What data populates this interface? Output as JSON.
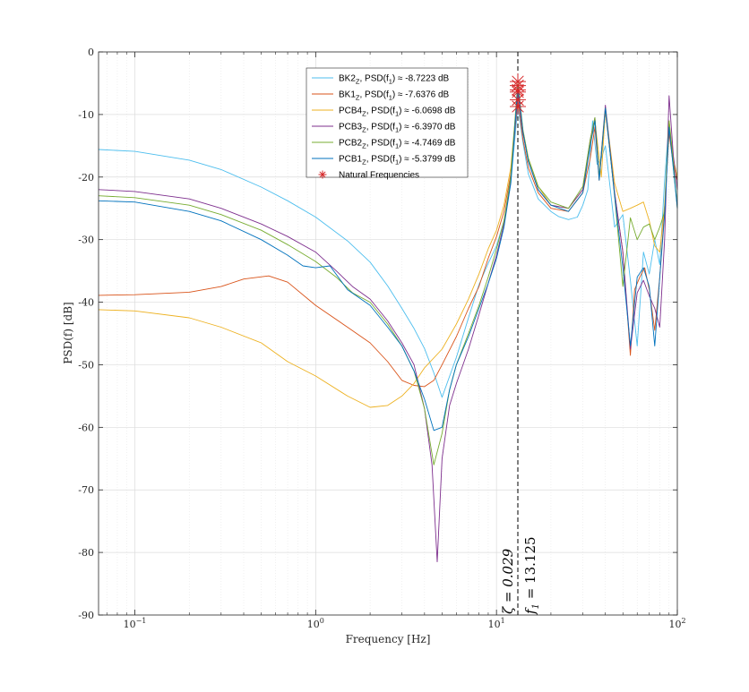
{
  "chart_data": {
    "type": "line",
    "xlabel": "Frequency [Hz]",
    "ylabel": "PSD(f) [dB]",
    "x_scale": "log",
    "xlim": [
      0.063,
      100
    ],
    "ylim": [
      -90,
      0
    ],
    "grid": true,
    "legend_position": "top-center",
    "x_ticks": [
      {
        "value": 0.1,
        "base": "10",
        "exp": "−1"
      },
      {
        "value": 1,
        "base": "10",
        "exp": "0"
      },
      {
        "value": 10,
        "base": "10",
        "exp": "1"
      },
      {
        "value": 100,
        "base": "10",
        "exp": "2"
      }
    ],
    "y_ticks": [
      0,
      -10,
      -20,
      -30,
      -40,
      -50,
      -60,
      -70,
      -80,
      -90
    ],
    "series": [
      {
        "name": "BK2",
        "sub": "Z",
        "psd_text": "-8.7223 dB",
        "color": "#4dbeee",
        "x": [
          0.063,
          0.1,
          0.2,
          0.3,
          0.5,
          0.7,
          1,
          1.5,
          2,
          2.5,
          3,
          3.5,
          4,
          4.5,
          5,
          6,
          7,
          8,
          9,
          10,
          11,
          12,
          13.125,
          14,
          15,
          17,
          20,
          22,
          25,
          28,
          30,
          32,
          34,
          36,
          38,
          40,
          45,
          50,
          55,
          60,
          65,
          70,
          75,
          80,
          85,
          90,
          95,
          100
        ],
        "y": [
          -15.6,
          -15.9,
          -17.3,
          -18.8,
          -21.6,
          -23.8,
          -26.4,
          -30.2,
          -33.6,
          -37.4,
          -41.0,
          -44.2,
          -47.4,
          -51.3,
          -55.2,
          -48.8,
          -42.5,
          -37.2,
          -33.8,
          -31.0,
          -27.0,
          -21.0,
          -8.7,
          -14.5,
          -19.5,
          -23.5,
          -25.5,
          -26.3,
          -26.8,
          -26.4,
          -24.5,
          -22.0,
          -11.0,
          -18.0,
          -17.0,
          -15.0,
          -28.0,
          -26.0,
          -36.5,
          -47.0,
          -32.0,
          -35.5,
          -30.0,
          -34.0,
          -20.5,
          -11.0,
          -18.5,
          -24.5
        ]
      },
      {
        "name": "BK1",
        "sub": "Z",
        "psd_text": "-7.6376 dB",
        "color": "#d95319",
        "x": [
          0.063,
          0.1,
          0.2,
          0.3,
          0.4,
          0.55,
          0.7,
          1,
          1.5,
          2,
          2.5,
          3,
          3.5,
          4,
          4.5,
          5,
          6,
          7,
          8,
          9,
          10,
          11,
          12,
          13.125,
          14,
          15,
          17,
          20,
          25,
          30,
          33,
          35,
          37,
          40,
          45,
          50,
          55,
          58,
          62,
          66,
          70,
          75,
          80,
          85,
          90,
          95,
          100
        ],
        "y": [
          -38.9,
          -38.8,
          -38.4,
          -37.5,
          -36.3,
          -35.8,
          -36.8,
          -40.5,
          -44.0,
          -46.5,
          -49.5,
          -52.5,
          -53.3,
          -53.5,
          -52.5,
          -50.0,
          -45.5,
          -41.0,
          -37.5,
          -33.0,
          -29.5,
          -25.5,
          -19.5,
          -7.6,
          -14.0,
          -18.5,
          -22.5,
          -25.0,
          -25.5,
          -22.5,
          -17.0,
          -12.0,
          -20.5,
          -9.5,
          -22.5,
          -32.0,
          -48.5,
          -38.0,
          -36.0,
          -34.5,
          -38.0,
          -44.5,
          -36.0,
          -25.0,
          -13.0,
          -18.0,
          -20.5
        ]
      },
      {
        "name": "PCB4",
        "sub": "Z",
        "psd_text": "-6.0698 dB",
        "color": "#edb120",
        "x": [
          0.063,
          0.1,
          0.2,
          0.3,
          0.5,
          0.7,
          1,
          1.5,
          2,
          2.5,
          3,
          3.5,
          4,
          5,
          6,
          7,
          8,
          9,
          10,
          11,
          12,
          13.125,
          14,
          15,
          17,
          20,
          25,
          30,
          33,
          35,
          38,
          40,
          45,
          50,
          55,
          60,
          65,
          70,
          75,
          80,
          85,
          90,
          95,
          100
        ],
        "y": [
          -41.2,
          -41.4,
          -42.5,
          -44.0,
          -46.5,
          -49.5,
          -51.8,
          -55.0,
          -56.8,
          -56.5,
          -55.0,
          -53.0,
          -50.5,
          -47.5,
          -43.5,
          -39.5,
          -35.5,
          -31.5,
          -28.5,
          -24.5,
          -18.5,
          -6.1,
          -12.5,
          -17.0,
          -21.5,
          -24.5,
          -25.0,
          -22.0,
          -14.5,
          -11.0,
          -20.0,
          -9.0,
          -21.0,
          -25.5,
          -25.0,
          -24.5,
          -24.0,
          -27.0,
          -31.0,
          -32.0,
          -24.5,
          -11.0,
          -17.0,
          -20.0
        ]
      },
      {
        "name": "PCB3",
        "sub": "Z",
        "psd_text": "-6.3970 dB",
        "color": "#7e2f8e",
        "x": [
          0.063,
          0.1,
          0.2,
          0.3,
          0.5,
          0.7,
          1,
          1.3,
          1.6,
          2,
          2.5,
          3,
          3.5,
          4,
          4.4,
          4.7,
          5,
          5.5,
          6,
          7,
          8,
          9,
          10,
          11,
          12,
          13.125,
          14,
          15,
          17,
          20,
          25,
          30,
          33,
          35,
          37,
          40,
          45,
          50,
          55,
          60,
          65,
          70,
          75,
          80,
          85,
          90,
          95,
          100
        ],
        "y": [
          -22.0,
          -22.3,
          -23.5,
          -25.0,
          -27.5,
          -29.5,
          -32.0,
          -35.0,
          -37.5,
          -39.5,
          -43.0,
          -46.5,
          -50.0,
          -57.0,
          -66.0,
          -81.5,
          -65.0,
          -56.5,
          -53.0,
          -47.5,
          -42.0,
          -37.0,
          -32.5,
          -27.5,
          -20.5,
          -6.4,
          -13.0,
          -17.5,
          -22.0,
          -24.5,
          -25.0,
          -22.0,
          -14.0,
          -10.5,
          -20.0,
          -8.5,
          -22.5,
          -32.0,
          -47.5,
          -38.5,
          -36.5,
          -39.0,
          -41.0,
          -44.0,
          -30.0,
          -7.0,
          -16.5,
          -22.0
        ]
      },
      {
        "name": "PCB2",
        "sub": "Z",
        "psd_text": "-4.7469 dB",
        "color": "#77ac30",
        "x": [
          0.063,
          0.1,
          0.2,
          0.3,
          0.5,
          0.7,
          1,
          1.3,
          1.6,
          2,
          2.5,
          3,
          3.5,
          4,
          4.5,
          5,
          5.5,
          6,
          7,
          8,
          9,
          10,
          11,
          12,
          13.125,
          14,
          15,
          17,
          20,
          25,
          30,
          33,
          35,
          37,
          40,
          45,
          50,
          55,
          60,
          65,
          70,
          75,
          80,
          85,
          90,
          95,
          100
        ],
        "y": [
          -23.0,
          -23.3,
          -24.5,
          -26.0,
          -28.5,
          -30.8,
          -33.5,
          -36.0,
          -38.5,
          -40.0,
          -43.5,
          -47.0,
          -51.0,
          -57.0,
          -66.0,
          -61.0,
          -54.0,
          -50.0,
          -45.0,
          -40.5,
          -36.0,
          -31.5,
          -27.0,
          -20.0,
          -4.7,
          -12.5,
          -17.0,
          -21.5,
          -24.0,
          -25.0,
          -21.5,
          -14.0,
          -10.5,
          -20.0,
          -9.0,
          -23.0,
          -37.5,
          -26.5,
          -30.0,
          -28.0,
          -27.5,
          -30.0,
          -28.0,
          -25.5,
          -11.0,
          -17.5,
          -25.0
        ]
      },
      {
        "name": "PCB1",
        "sub": "Z",
        "psd_text": "-5.3799 dB",
        "color": "#0072bd",
        "x": [
          0.063,
          0.1,
          0.2,
          0.3,
          0.5,
          0.7,
          0.85,
          1,
          1.2,
          1.5,
          2,
          2.5,
          3,
          3.5,
          4,
          4.5,
          5,
          5.5,
          6,
          7,
          8,
          9,
          10,
          11,
          12,
          13.125,
          14,
          15,
          17,
          20,
          25,
          30,
          33,
          35,
          37,
          40,
          45,
          50,
          55,
          60,
          65,
          70,
          75,
          80,
          85,
          90,
          95,
          100
        ],
        "y": [
          -23.8,
          -24.0,
          -25.5,
          -27.0,
          -30.0,
          -32.5,
          -34.2,
          -34.5,
          -34.2,
          -38.0,
          -40.5,
          -44.0,
          -47.0,
          -51.0,
          -55.5,
          -60.5,
          -60.0,
          -54.0,
          -50.0,
          -45.5,
          -41.0,
          -37.0,
          -33.0,
          -28.0,
          -21.0,
          -5.4,
          -12.8,
          -17.5,
          -22.0,
          -24.5,
          -25.5,
          -22.5,
          -15.0,
          -11.0,
          -20.5,
          -9.0,
          -23.0,
          -34.5,
          -47.0,
          -36.0,
          -34.5,
          -37.5,
          -47.0,
          -36.0,
          -26.0,
          -12.0,
          -18.5,
          -25.0
        ]
      }
    ],
    "natural_frequencies": {
      "label": "Natural Frequencies",
      "color": "#d62728",
      "x": 13.125,
      "y": [
        -8.7223,
        -7.6376,
        -6.0698,
        -6.397,
        -4.7469,
        -5.3799
      ]
    },
    "vline": {
      "x": 13.125
    },
    "annotations": {
      "zeta": "ζ = 0.029",
      "f1_base": "f",
      "f1_sub": "1",
      "f1_value": " = 13.125"
    },
    "legend_psd_prefix": ", PSD(f",
    "legend_psd_sub": "1",
    "legend_psd_suffix": ") ≈ "
  }
}
